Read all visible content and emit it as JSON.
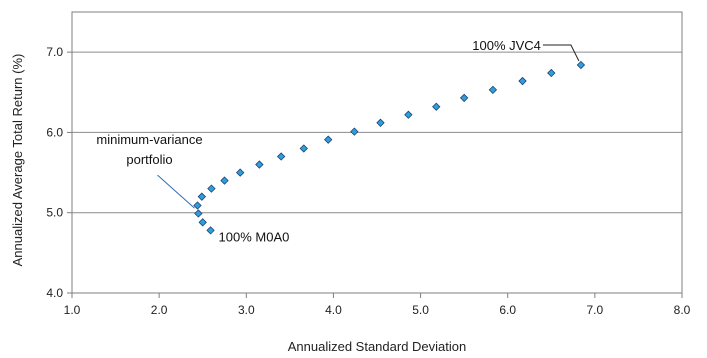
{
  "chart_data": {
    "type": "scatter",
    "title": "",
    "xlabel": "Annualized Standard Deviation",
    "ylabel": "Annualized Average Total Return (%)",
    "xlim": [
      1.0,
      8.0
    ],
    "ylim": [
      4.0,
      7.5
    ],
    "x_ticks": [
      1.0,
      2.0,
      3.0,
      4.0,
      5.0,
      6.0,
      7.0,
      8.0
    ],
    "y_ticks": [
      4.0,
      5.0,
      6.0,
      7.0
    ],
    "grid": "horizontal",
    "marker_color": "#2e9fd8",
    "marker_edge_color": "#1f3f78",
    "points": [
      {
        "x": 2.59,
        "y": 4.78
      },
      {
        "x": 2.5,
        "y": 4.88
      },
      {
        "x": 2.45,
        "y": 4.99
      },
      {
        "x": 2.44,
        "y": 5.09
      },
      {
        "x": 2.49,
        "y": 5.2
      },
      {
        "x": 2.6,
        "y": 5.3
      },
      {
        "x": 2.75,
        "y": 5.4
      },
      {
        "x": 2.93,
        "y": 5.5
      },
      {
        "x": 3.15,
        "y": 5.6
      },
      {
        "x": 3.4,
        "y": 5.7
      },
      {
        "x": 3.66,
        "y": 5.8
      },
      {
        "x": 3.94,
        "y": 5.91
      },
      {
        "x": 4.24,
        "y": 6.01
      },
      {
        "x": 4.54,
        "y": 6.12
      },
      {
        "x": 4.86,
        "y": 6.22
      },
      {
        "x": 5.18,
        "y": 6.32
      },
      {
        "x": 5.5,
        "y": 6.43
      },
      {
        "x": 5.83,
        "y": 6.53
      },
      {
        "x": 6.17,
        "y": 6.64
      },
      {
        "x": 6.5,
        "y": 6.74
      },
      {
        "x": 6.84,
        "y": 6.84
      }
    ],
    "annotations": [
      {
        "text": "100% JVC4",
        "target": {
          "x": 6.84,
          "y": 6.84
        }
      },
      {
        "text": "minimum-variance",
        "text2": "portfolio",
        "target": {
          "x": 2.44,
          "y": 5.02
        }
      },
      {
        "text": "100% M0A0",
        "target": {
          "x": 2.59,
          "y": 4.78
        }
      }
    ]
  }
}
